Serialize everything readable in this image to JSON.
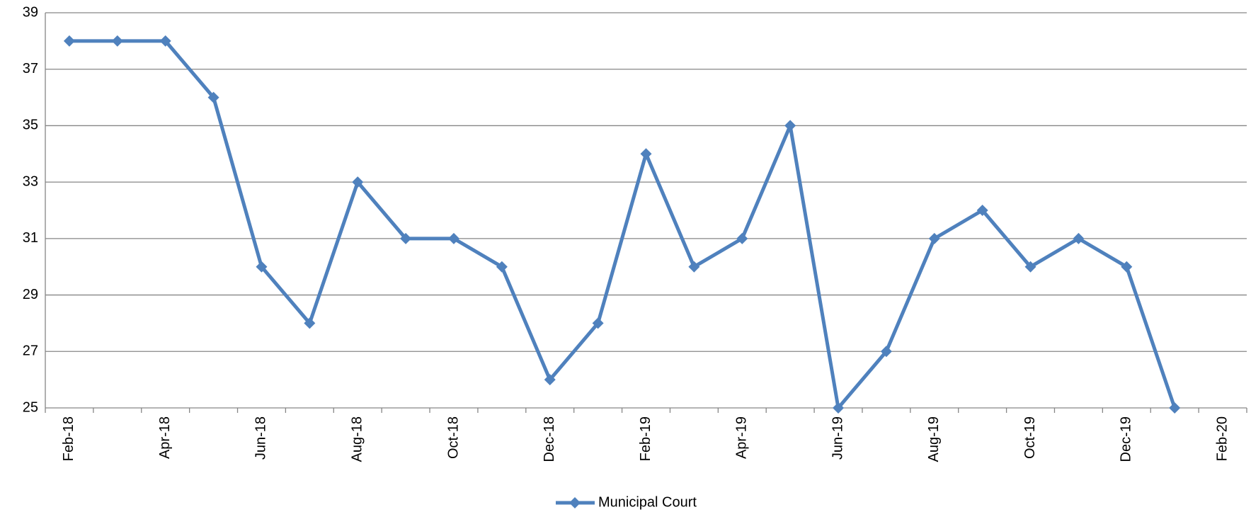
{
  "chart_data": {
    "type": "line",
    "categories": [
      "Feb-18",
      null,
      "Apr-18",
      null,
      "Jun-18",
      null,
      "Aug-18",
      null,
      "Oct-18",
      null,
      "Dec-18",
      null,
      "Feb-19",
      null,
      "Apr-19",
      null,
      "Jun-19",
      null,
      "Aug-19",
      null,
      "Oct-19",
      null,
      "Dec-19",
      null,
      "Feb-20"
    ],
    "series": [
      {
        "name": "Municipal Court",
        "color": "#4f81bd",
        "values": [
          38,
          38,
          38,
          36,
          30,
          28,
          33,
          31,
          31,
          30,
          26,
          28,
          34,
          30,
          31,
          35,
          25,
          27,
          31,
          32,
          30,
          31,
          30,
          25,
          null
        ]
      }
    ],
    "ylim": [
      25,
      39
    ],
    "yticks": [
      25,
      27,
      29,
      31,
      33,
      35,
      37,
      39
    ],
    "grid": true,
    "legend": "bottom"
  }
}
